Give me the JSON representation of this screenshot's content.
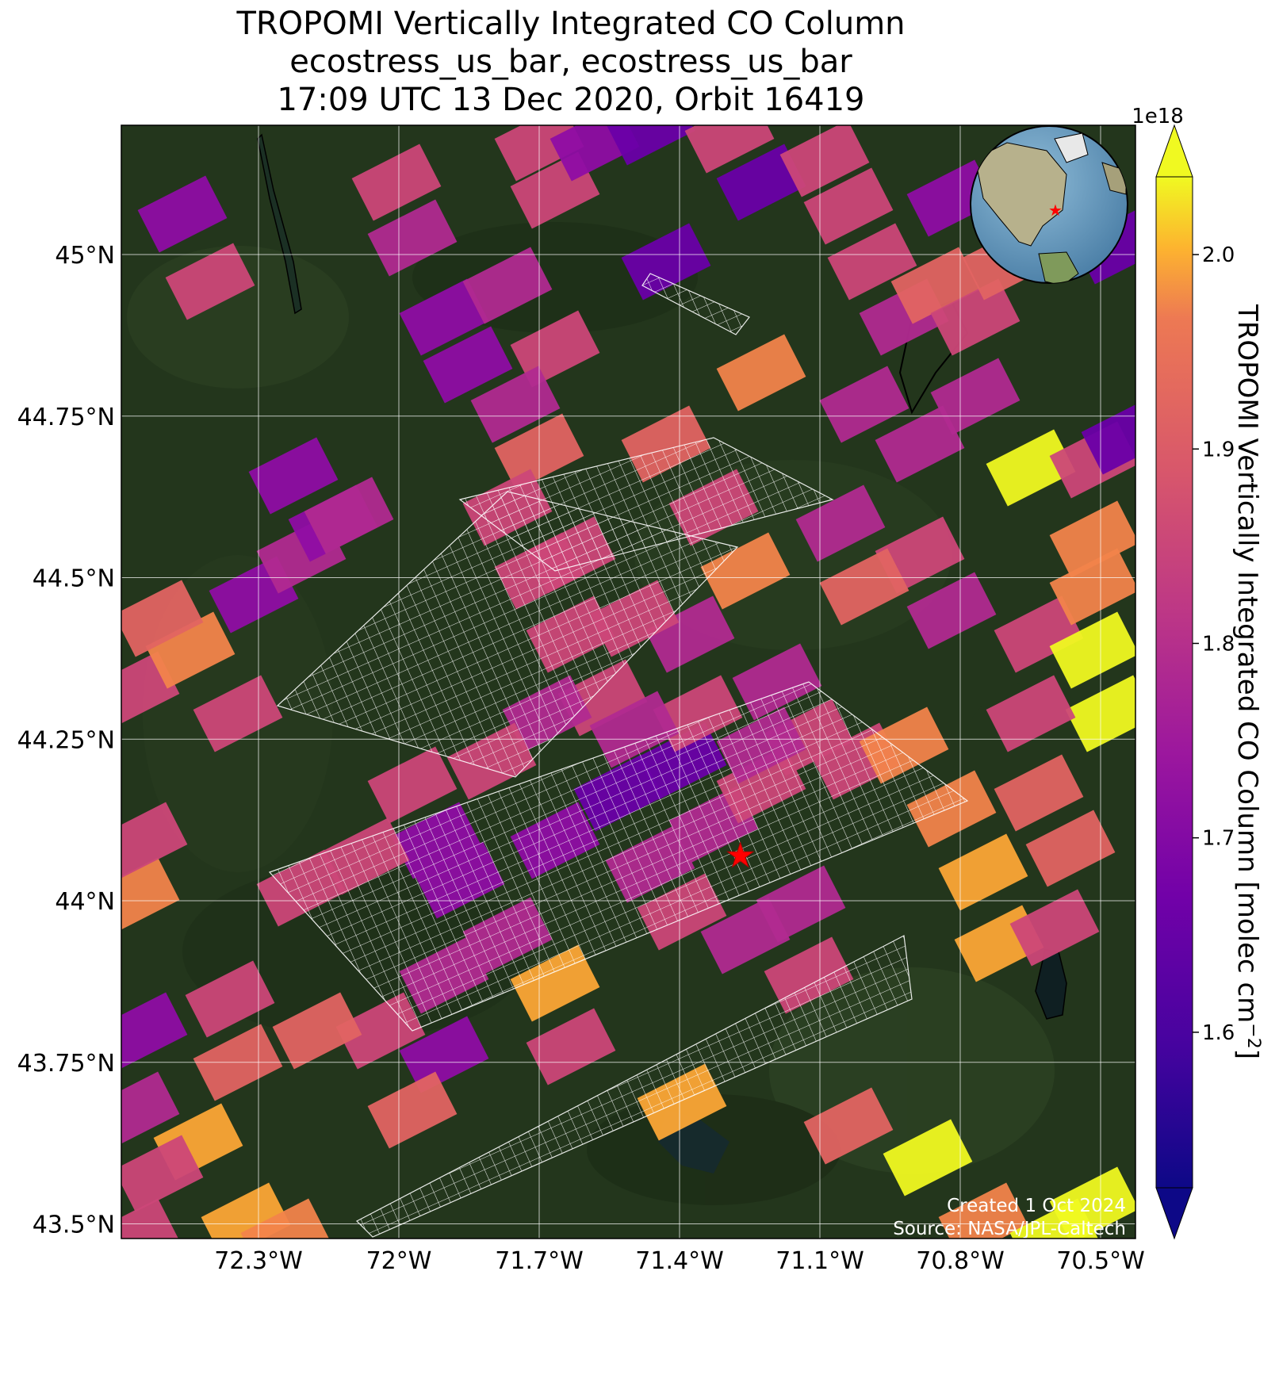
{
  "title": {
    "line1": "TROPOMI Vertically Integrated CO Column",
    "line2": "ecostress_us_bar, ecostress_us_bar",
    "line3": "17:09 UTC 13 Dec 2020, Orbit 16419"
  },
  "map": {
    "lon_ticks": [
      "72.3°W",
      "72°W",
      "71.7°W",
      "71.4°W",
      "71.1°W",
      "70.8°W",
      "70.5°W"
    ],
    "lat_ticks": [
      "45°N",
      "44.75°N",
      "44.5°N",
      "44.25°N",
      "44°N",
      "43.75°N",
      "43.5°N"
    ],
    "lon_tick_values": [
      -72.3,
      -72.0,
      -71.7,
      -71.4,
      -71.1,
      -70.8,
      -70.5
    ],
    "lat_tick_values": [
      45.0,
      44.75,
      44.5,
      44.25,
      44.0,
      43.75,
      43.5
    ],
    "background": "satellite imagery, forested terrain",
    "site_marker": {
      "lon": -71.27,
      "lat": 44.07,
      "color": "#ff0000",
      "icon": "star-icon"
    },
    "inset": {
      "type": "globe",
      "marker": "star-icon"
    },
    "credit_line1": "Created 1 Oct 2024",
    "credit_line2": "Source: NASA/JPL-Caltech"
  },
  "colorbar": {
    "label": "TROPOMI Vertically Integrated CO Column [molec cm",
    "label_superscript": "−2",
    "label_close": "]",
    "exponent": "1e18",
    "ticks": [
      "1.6",
      "1.7",
      "1.8",
      "1.9",
      "2.0"
    ],
    "tick_values": [
      1.6,
      1.7,
      1.8,
      1.9,
      2.0
    ],
    "range": [
      1.52,
      2.04
    ],
    "colormap": "plasma",
    "extend": "both"
  },
  "colors": {
    "dark_purple": "#6a00a8",
    "purple": "#8f0da4",
    "magenta": "#b12a90",
    "pink": "#cc4778",
    "salmon": "#e16462",
    "orange": "#f2844b",
    "light_orange": "#fca636",
    "yellow": "#f0f921"
  }
}
